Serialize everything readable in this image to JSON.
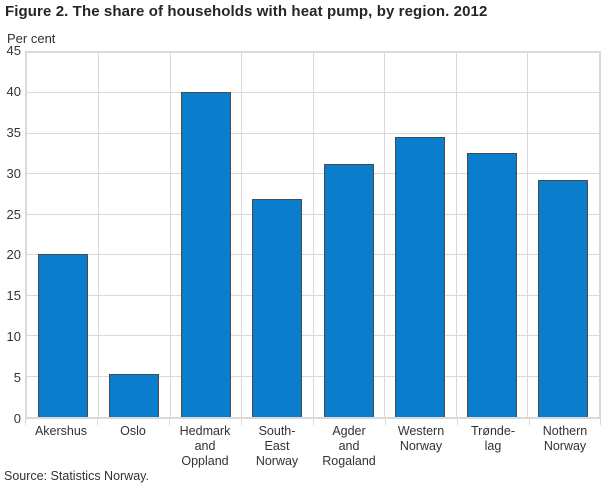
{
  "figure": {
    "title": "Figure 2. The share of households with heat pump, by region. 2012",
    "source": "Source: Statistics Norway."
  },
  "chart_data": {
    "type": "bar",
    "title": "Figure 2. The share of households with heat pump, by region. 2012",
    "ylabel": "Per cent",
    "xlabel": "",
    "categories": [
      "Akershus",
      "Oslo",
      "Hedmark\nand\nOppland",
      "South-\nEast\nNorway",
      "Agder\nand\nRogaland",
      "Western\nNorway",
      "Trønde-\nlag",
      "Nothern\nNorway"
    ],
    "values": [
      20.2,
      5.3,
      40.2,
      26.9,
      31.3,
      34.6,
      32.6,
      29.3
    ],
    "ylim": [
      0,
      45
    ],
    "ytick_interval": 5,
    "grid": true,
    "legend": "none",
    "bar_color": "#0a7dcd",
    "bar_border_color": "#4a4a4a",
    "grid_color": "#d9d9d9",
    "source": "Source: Statistics Norway."
  }
}
